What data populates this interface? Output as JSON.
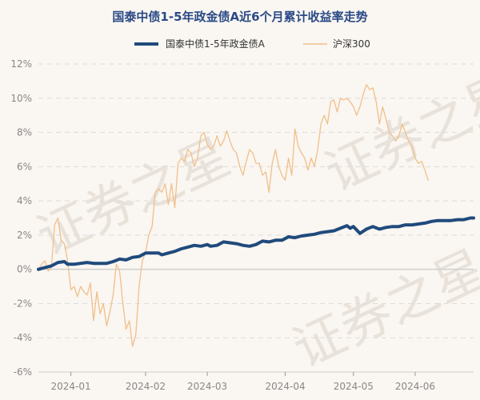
{
  "chart_data": {
    "type": "line",
    "title": "国泰中债1-5年政金债A近6个月累计收益率走势",
    "xlabel": "",
    "ylabel": "",
    "ylim": [
      -6,
      12
    ],
    "y_ticks": [
      "12%",
      "10%",
      "8%",
      "6%",
      "4%",
      "2%",
      "0%",
      "-2%",
      "-4%",
      "-6%"
    ],
    "y_tick_values": [
      12,
      10,
      8,
      6,
      4,
      2,
      0,
      -2,
      -4,
      -6
    ],
    "x_ticks": [
      "2024-01",
      "2024-02",
      "2024-03",
      "2024-04",
      "2024-05",
      "2024-06"
    ],
    "x_tick_positions": [
      10,
      33,
      52,
      76,
      97,
      116
    ],
    "x_range": [
      0,
      134
    ],
    "grid": true,
    "legend_position": "top",
    "series": [
      {
        "name": "国泰中债1-5年政金债A",
        "color": "#1f4a7c",
        "points": [
          [
            0,
            0
          ],
          [
            2,
            0.1
          ],
          [
            4,
            0.2
          ],
          [
            6,
            0.4
          ],
          [
            8,
            0.45
          ],
          [
            9,
            0.3
          ],
          [
            11,
            0.3
          ],
          [
            13,
            0.35
          ],
          [
            15,
            0.4
          ],
          [
            17,
            0.35
          ],
          [
            19,
            0.35
          ],
          [
            21,
            0.35
          ],
          [
            23,
            0.45
          ],
          [
            25,
            0.6
          ],
          [
            27,
            0.55
          ],
          [
            29,
            0.7
          ],
          [
            31,
            0.75
          ],
          [
            33,
            0.95
          ],
          [
            35,
            0.95
          ],
          [
            37,
            0.95
          ],
          [
            38,
            0.85
          ],
          [
            40,
            0.95
          ],
          [
            42,
            1.05
          ],
          [
            44,
            1.2
          ],
          [
            46,
            1.3
          ],
          [
            48,
            1.4
          ],
          [
            50,
            1.35
          ],
          [
            52,
            1.45
          ],
          [
            53,
            1.35
          ],
          [
            55,
            1.4
          ],
          [
            57,
            1.6
          ],
          [
            59,
            1.55
          ],
          [
            61,
            1.5
          ],
          [
            63,
            1.4
          ],
          [
            65,
            1.35
          ],
          [
            67,
            1.45
          ],
          [
            69,
            1.65
          ],
          [
            71,
            1.6
          ],
          [
            73,
            1.7
          ],
          [
            75,
            1.7
          ],
          [
            77,
            1.9
          ],
          [
            79,
            1.85
          ],
          [
            81,
            1.95
          ],
          [
            83,
            2.0
          ],
          [
            85,
            2.05
          ],
          [
            87,
            2.15
          ],
          [
            89,
            2.2
          ],
          [
            91,
            2.25
          ],
          [
            93,
            2.4
          ],
          [
            95,
            2.55
          ],
          [
            96,
            2.4
          ],
          [
            97,
            2.5
          ],
          [
            99,
            2.1
          ],
          [
            101,
            2.35
          ],
          [
            103,
            2.5
          ],
          [
            105,
            2.35
          ],
          [
            107,
            2.45
          ],
          [
            109,
            2.5
          ],
          [
            111,
            2.5
          ],
          [
            113,
            2.6
          ],
          [
            115,
            2.6
          ],
          [
            117,
            2.65
          ],
          [
            119,
            2.7
          ],
          [
            121,
            2.8
          ],
          [
            123,
            2.85
          ],
          [
            125,
            2.85
          ],
          [
            127,
            2.85
          ],
          [
            129,
            2.9
          ],
          [
            131,
            2.9
          ],
          [
            133,
            3.0
          ],
          [
            134,
            3.0
          ]
        ]
      },
      {
        "name": "沪深300",
        "color": "#f0c08a",
        "points": [
          [
            0,
            0
          ],
          [
            1,
            0.3
          ],
          [
            2,
            0.5
          ],
          [
            3,
            -0.1
          ],
          [
            4,
            0.1
          ],
          [
            5,
            2.6
          ],
          [
            6,
            3.0
          ],
          [
            7,
            1.7
          ],
          [
            8,
            1.5
          ],
          [
            9,
            0.5
          ],
          [
            10,
            -1.2
          ],
          [
            11,
            -1.0
          ],
          [
            12,
            -1.6
          ],
          [
            13,
            -1.0
          ],
          [
            14,
            -1.3
          ],
          [
            15,
            -1.5
          ],
          [
            16,
            -0.8
          ],
          [
            17,
            -3.0
          ],
          [
            18,
            -1.3
          ],
          [
            19,
            -2.6
          ],
          [
            20,
            -2.0
          ],
          [
            21,
            -3.3
          ],
          [
            22,
            -2.5
          ],
          [
            23,
            -1.5
          ],
          [
            24,
            0.3
          ],
          [
            25,
            -0.1
          ],
          [
            26,
            -2.0
          ],
          [
            27,
            -3.5
          ],
          [
            28,
            -3.0
          ],
          [
            29,
            -4.5
          ],
          [
            30,
            -3.8
          ],
          [
            31,
            -1.0
          ],
          [
            32,
            0.5
          ],
          [
            33,
            1.0
          ],
          [
            34,
            2.0
          ],
          [
            35,
            2.5
          ],
          [
            36,
            4.5
          ],
          [
            37,
            4.7
          ],
          [
            38,
            4.5
          ],
          [
            39,
            5.0
          ],
          [
            40,
            3.8
          ],
          [
            41,
            5.0
          ],
          [
            42,
            3.6
          ],
          [
            43,
            6.2
          ],
          [
            44,
            6.5
          ],
          [
            45,
            6.3
          ],
          [
            46,
            7.0
          ],
          [
            47,
            6.8
          ],
          [
            48,
            6.0
          ],
          [
            49,
            6.5
          ],
          [
            50,
            7.8
          ],
          [
            51,
            8.0
          ],
          [
            52,
            7.3
          ],
          [
            53,
            7.0
          ],
          [
            54,
            7.2
          ],
          [
            55,
            7.8
          ],
          [
            56,
            7.2
          ],
          [
            57,
            7.5
          ],
          [
            58,
            8.1
          ],
          [
            59,
            7.5
          ],
          [
            60,
            7.0
          ],
          [
            61,
            6.8
          ],
          [
            62,
            6.0
          ],
          [
            63,
            5.5
          ],
          [
            64,
            6.3
          ],
          [
            65,
            7.0
          ],
          [
            66,
            6.8
          ],
          [
            67,
            6.2
          ],
          [
            68,
            6.2
          ],
          [
            69,
            5.5
          ],
          [
            70,
            5.7
          ],
          [
            71,
            4.5
          ],
          [
            72,
            6.2
          ],
          [
            73,
            7.0
          ],
          [
            74,
            6.0
          ],
          [
            75,
            5.5
          ],
          [
            76,
            5.2
          ],
          [
            77,
            6.5
          ],
          [
            78,
            5.5
          ],
          [
            79,
            8.2
          ],
          [
            80,
            7.2
          ],
          [
            81,
            6.8
          ],
          [
            82,
            6.5
          ],
          [
            83,
            5.8
          ],
          [
            84,
            6.5
          ],
          [
            85,
            6.0
          ],
          [
            86,
            7.0
          ],
          [
            87,
            8.5
          ],
          [
            88,
            9.0
          ],
          [
            89,
            8.5
          ],
          [
            90,
            9.8
          ],
          [
            91,
            9.9
          ],
          [
            92,
            9.2
          ],
          [
            93,
            10.0
          ],
          [
            94,
            9.9
          ],
          [
            95,
            10.0
          ],
          [
            96,
            9.8
          ],
          [
            97,
            9.5
          ],
          [
            98,
            9.0
          ],
          [
            99,
            9.5
          ],
          [
            100,
            10.2
          ],
          [
            101,
            10.8
          ],
          [
            102,
            10.5
          ],
          [
            103,
            10.6
          ],
          [
            104,
            9.8
          ],
          [
            105,
            8.5
          ],
          [
            106,
            9.5
          ],
          [
            107,
            8.8
          ],
          [
            108,
            8.0
          ],
          [
            109,
            7.8
          ],
          [
            110,
            7.5
          ],
          [
            111,
            7.8
          ],
          [
            112,
            8.5
          ],
          [
            113,
            8.0
          ],
          [
            114,
            7.5
          ],
          [
            115,
            7.2
          ],
          [
            116,
            6.5
          ],
          [
            117,
            6.2
          ],
          [
            118,
            6.3
          ],
          [
            119,
            5.8
          ],
          [
            120,
            5.2
          ]
        ]
      }
    ],
    "zero_line": true
  }
}
